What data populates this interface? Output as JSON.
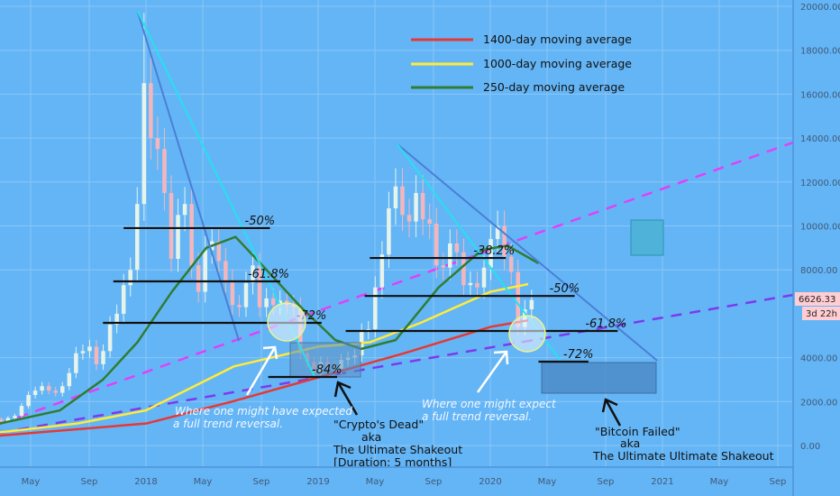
{
  "chart_data": {
    "type": "candlestick",
    "title": "",
    "interval": "2W",
    "start_year": 2017.08,
    "step_years": 0.0395,
    "closes": [
      1050,
      1200,
      1100,
      1250,
      1350,
      1800,
      2300,
      2500,
      2700,
      2500,
      2400,
      2700,
      3300,
      4200,
      4300,
      4500,
      3700,
      4300,
      5500,
      6000,
      7300,
      8000,
      11000,
      16500,
      14000,
      13500,
      11500,
      8500,
      10500,
      11000,
      8200,
      7000,
      8900,
      9300,
      8400,
      7500,
      6400,
      6300,
      7400,
      8200,
      6300,
      6700,
      6400,
      6600,
      6400,
      6300,
      4200,
      3800,
      3300,
      3800,
      3600,
      3500,
      3900,
      4000,
      4100,
      5200,
      5300,
      7200,
      8700,
      10800,
      11800,
      10500,
      10200,
      11500,
      10300,
      10100,
      8200,
      8100,
      9200,
      8800,
      7300,
      7400,
      7200,
      8100,
      9400,
      10000,
      8600,
      7900,
      5400,
      6200,
      6626
    ],
    "peak_high": 19700,
    "ylim": [
      -1000,
      20300
    ],
    "xlim": [
      2017.15,
      2021.76
    ],
    "y_ticks": [
      "20000.00",
      "18000.00",
      "16000.00",
      "14000.00",
      "12000.00",
      "10000.00",
      "8000.00",
      "4000.00",
      "2000.00",
      "0.00"
    ],
    "y_tick_values": [
      20000,
      18000,
      16000,
      14000,
      12000,
      10000,
      8000,
      4000,
      2000,
      0
    ],
    "x_ticks": [
      {
        "label": "May",
        "t": 2017.33
      },
      {
        "label": "Sep",
        "t": 2017.67
      },
      {
        "label": "2018",
        "t": 2018.0
      },
      {
        "label": "May",
        "t": 2018.33
      },
      {
        "label": "Sep",
        "t": 2018.67
      },
      {
        "label": "2019",
        "t": 2019.0
      },
      {
        "label": "May",
        "t": 2019.33
      },
      {
        "label": "Sep",
        "t": 2019.67
      },
      {
        "label": "2020",
        "t": 2020.0
      },
      {
        "label": "May",
        "t": 2020.33
      },
      {
        "label": "Sep",
        "t": 2020.67
      },
      {
        "label": "2021",
        "t": 2021.0
      },
      {
        "label": "May",
        "t": 2021.33
      },
      {
        "label": "Sep",
        "t": 2021.67
      }
    ],
    "last_price": "6626.33",
    "countdown": "3d 22h",
    "colors": {
      "up": "#e6f4ea",
      "down": "#f4b6bd",
      "bg": "#64b5f6",
      "grid": "#8ac6f7",
      "ma1400": "#e53935",
      "ma1000": "#ffeb3b",
      "ma250": "#2e7d32",
      "trend_blue": "#4a7fd6",
      "trend_cyan": "#26e0f0",
      "magenta": "#e040fb",
      "purple": "#7c3aed"
    },
    "series": [
      {
        "name": "1400-day moving average",
        "color": "#e53935",
        "points": [
          [
            2017.15,
            450
          ],
          [
            2018.0,
            1000
          ],
          [
            2018.5,
            2000
          ],
          [
            2019.0,
            3100
          ],
          [
            2019.5,
            4200
          ],
          [
            2020.0,
            5400
          ],
          [
            2020.22,
            5700
          ]
        ]
      },
      {
        "name": "1000-day moving average",
        "color": "#ffeb3b",
        "points": [
          [
            2017.15,
            600
          ],
          [
            2017.6,
            1000
          ],
          [
            2018.0,
            1600
          ],
          [
            2018.51,
            3600
          ],
          [
            2019.0,
            4500
          ],
          [
            2019.3,
            4700
          ],
          [
            2019.6,
            5600
          ],
          [
            2020.0,
            7000
          ],
          [
            2020.22,
            7350
          ]
        ]
      },
      {
        "name": "250-day moving average",
        "color": "#2e7d32",
        "points": [
          [
            2017.15,
            1000
          ],
          [
            2017.5,
            1600
          ],
          [
            2017.75,
            3000
          ],
          [
            2017.95,
            4700
          ],
          [
            2018.15,
            7000
          ],
          [
            2018.35,
            9000
          ],
          [
            2018.52,
            9500
          ],
          [
            2018.7,
            8000
          ],
          [
            2018.9,
            6300
          ],
          [
            2019.1,
            4800
          ],
          [
            2019.25,
            4400
          ],
          [
            2019.45,
            4800
          ],
          [
            2019.7,
            7200
          ],
          [
            2019.95,
            8900
          ],
          [
            2020.1,
            9100
          ],
          [
            2020.28,
            8300
          ]
        ]
      }
    ],
    "legend": [
      "1400-day moving average",
      "1000-day moving average",
      "250-day moving average"
    ],
    "legend_position": "top-center",
    "trendlines": [
      {
        "name": "blue-trendline-1",
        "color": "#4a7fd6",
        "from": [
          2017.95,
          19800
        ],
        "to": [
          2018.54,
          4760
        ]
      },
      {
        "name": "cyan-trendline-1",
        "color": "#26e0f0",
        "from": [
          2017.95,
          19800
        ],
        "to": [
          2018.98,
          3120
        ]
      },
      {
        "name": "blue-trendline-2",
        "color": "#4a7fd6",
        "from": [
          2019.46,
          13720
        ],
        "to": [
          2020.97,
          3860
        ]
      },
      {
        "name": "cyan-trendline-2",
        "color": "#26e0f0",
        "from": [
          2019.46,
          13720
        ],
        "to": [
          2020.41,
          3860
        ]
      }
    ],
    "dashed_lines": [
      {
        "name": "magenta-dashed-trend",
        "color": "#e040fb",
        "from": [
          2017.15,
          985
        ],
        "to": [
          2021.76,
          13800
        ]
      },
      {
        "name": "purple-dashed-trend",
        "color": "#7c3aed",
        "from": [
          2017.15,
          575
        ],
        "to": [
          2021.76,
          6860
        ]
      }
    ],
    "fib_levels": [
      {
        "label": "-50%",
        "price": 9900,
        "t0": 2017.87,
        "t1": 2018.72
      },
      {
        "label": "-61.8%",
        "price": 7475,
        "t0": 2017.81,
        "t1": 2018.78
      },
      {
        "label": "-72%",
        "price": 5585,
        "t0": 2017.75,
        "t1": 2019.02
      },
      {
        "label": "-84%",
        "price": 3120,
        "t0": 2018.71,
        "t1": 2019.11
      },
      {
        "label": "-38.2%",
        "price": 8540,
        "t0": 2019.3,
        "t1": 2020.09
      },
      {
        "label": "-50%",
        "price": 6810,
        "t0": 2019.27,
        "t1": 2020.49
      },
      {
        "label": "-61.8%",
        "price": 5215,
        "t0": 2019.16,
        "t1": 2020.74
      },
      {
        "label": "-72%",
        "price": 3820,
        "t0": 2020.28,
        "t1": 2020.57
      }
    ],
    "annotations": {
      "note_reversal_1": [
        "Where one might have expected",
        "a full trend reversal."
      ],
      "note_reversal_2": [
        "Where one might expect",
        "a full trend reversal."
      ],
      "note_crypto_dead": [
        "\"Crypto's Dead\"",
        "aka",
        "The Ultimate Shakeout",
        "[Duration: 5 months]"
      ],
      "note_bitcoin_failed": [
        "\"Bitcoin Failed\"",
        "aka",
        "The Ultimate Ultimate Shakeout"
      ]
    }
  }
}
